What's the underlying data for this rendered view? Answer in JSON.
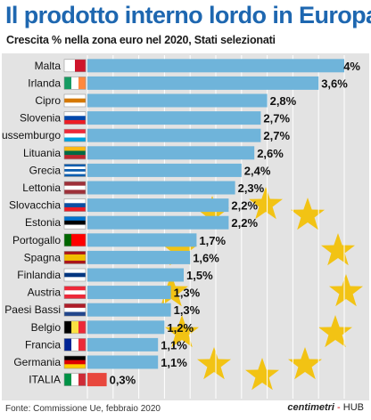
{
  "title": "Il prodotto interno lordo in Europa",
  "subtitle": "Crescita % nella zona euro nel 2020, Stati selezionati",
  "source": "Fonte: Commissione Ue, febbraio 2020",
  "brand": {
    "logo": "centimetri",
    "separator": " - ",
    "hub": "HUB"
  },
  "colors": {
    "bar": "#6fb4da",
    "bar_highlight": "#e8473d",
    "stars": "#f2c314",
    "panel": "#e3e3e3",
    "title": "#1e67b0"
  },
  "chart_data": {
    "type": "bar",
    "orientation": "horizontal",
    "title": "Il prodotto interno lordo in Europa",
    "subtitle": "Crescita % nella zona euro nel 2020, Stati selezionati",
    "xlim": [
      0,
      4
    ],
    "grid": true,
    "categories": [
      "Malta",
      "Irlanda",
      "Cipro",
      "Slovenia",
      "Lussemburgo",
      "Lituania",
      "Grecia",
      "Lettonia",
      "Slovacchia",
      "Estonia",
      "Portogallo",
      "Spagna",
      "Finlandia",
      "Austria",
      "Paesi Bassi",
      "Belgio",
      "Francia",
      "Germania",
      "ITALIA"
    ],
    "values": [
      4.0,
      3.6,
      2.8,
      2.7,
      2.7,
      2.6,
      2.4,
      2.3,
      2.2,
      2.2,
      1.7,
      1.6,
      1.5,
      1.3,
      1.3,
      1.2,
      1.1,
      1.1,
      0.3
    ],
    "value_labels": [
      "4%",
      "3,6%",
      "2,8%",
      "2,7%",
      "2,7%",
      "2,6%",
      "2,4%",
      "2,3%",
      "2,2%",
      "2,2%",
      "1,7%",
      "1,6%",
      "1,5%",
      "1,3%",
      "1,3%",
      "1,2%",
      "1,1%",
      "1,1%",
      "0,3%"
    ],
    "highlight": "ITALIA"
  }
}
